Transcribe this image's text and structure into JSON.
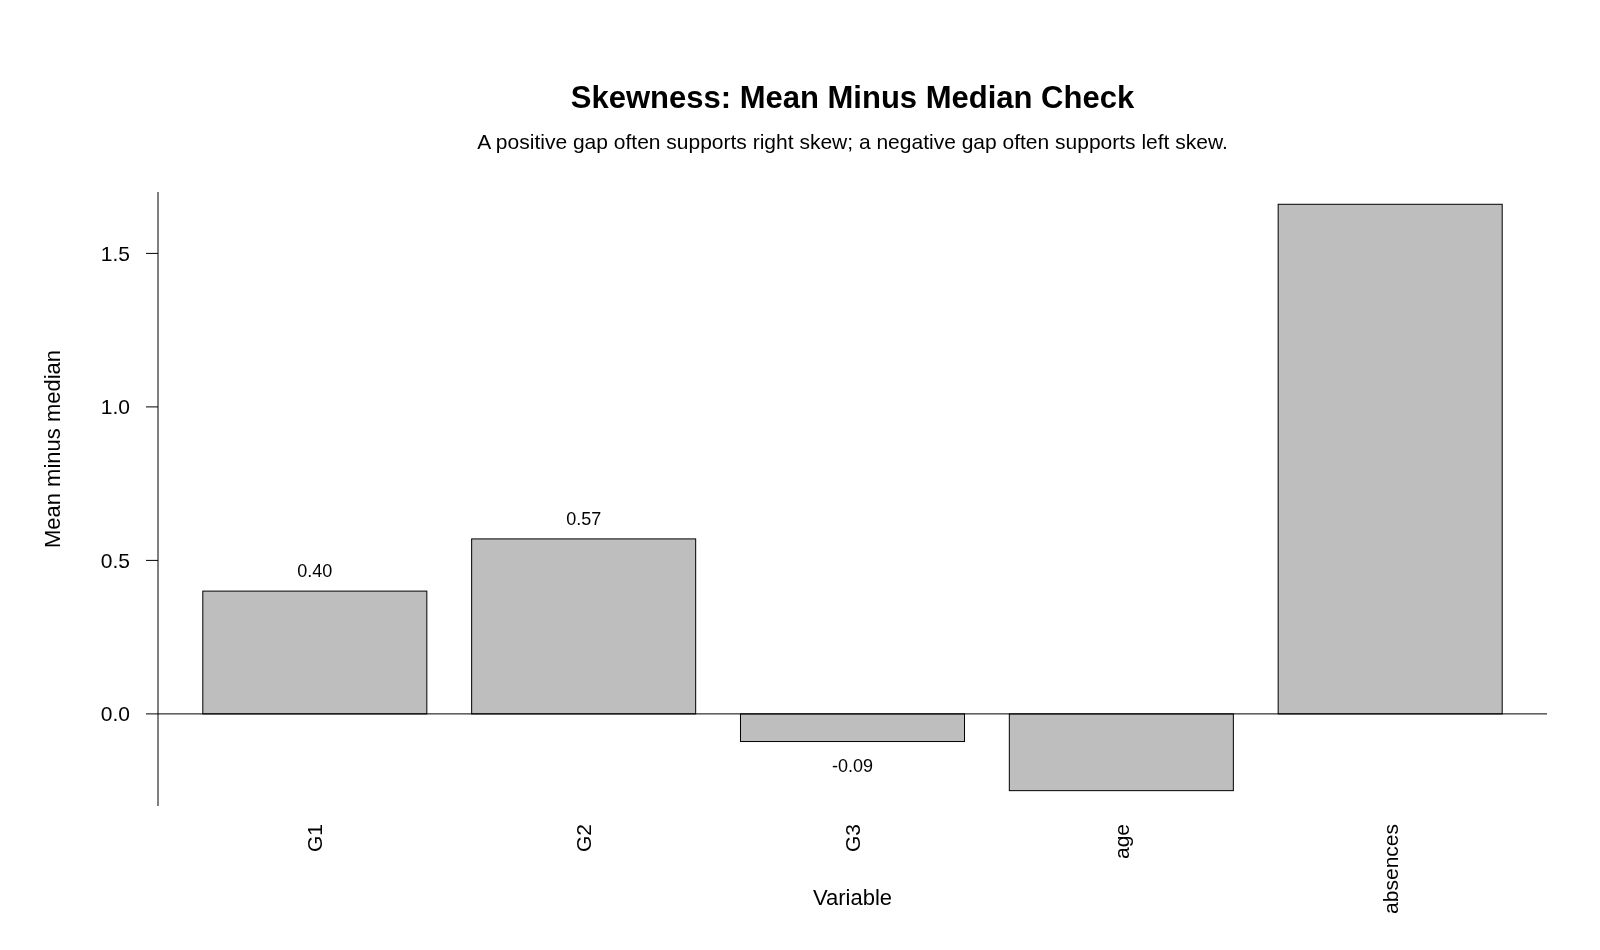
{
  "chart_data": {
    "type": "bar",
    "title": "Skewness: Mean Minus Median Check",
    "subtitle": "A positive gap often supports right skew; a negative gap often supports left skew.",
    "xlabel": "Variable",
    "ylabel": "Mean minus median",
    "categories": [
      "G1",
      "G2",
      "G3",
      "age",
      "absences"
    ],
    "values": [
      0.4,
      0.57,
      -0.09,
      -0.25,
      1.66
    ],
    "value_labels": [
      "0.40",
      "0.57",
      "-0.09",
      null,
      null
    ],
    "color": "#bebebe",
    "ylim": [
      -0.3,
      1.7
    ],
    "yticks": [
      {
        "value": 0,
        "label": "0.0"
      },
      {
        "value": 0.5,
        "label": "0.5"
      },
      {
        "value": 1,
        "label": "1.0"
      },
      {
        "value": 1.5,
        "label": "1.5"
      }
    ],
    "ref_lines": [
      {
        "axis": "y",
        "value": 0,
        "color": "#000000",
        "line_style": "solid"
      }
    ]
  }
}
